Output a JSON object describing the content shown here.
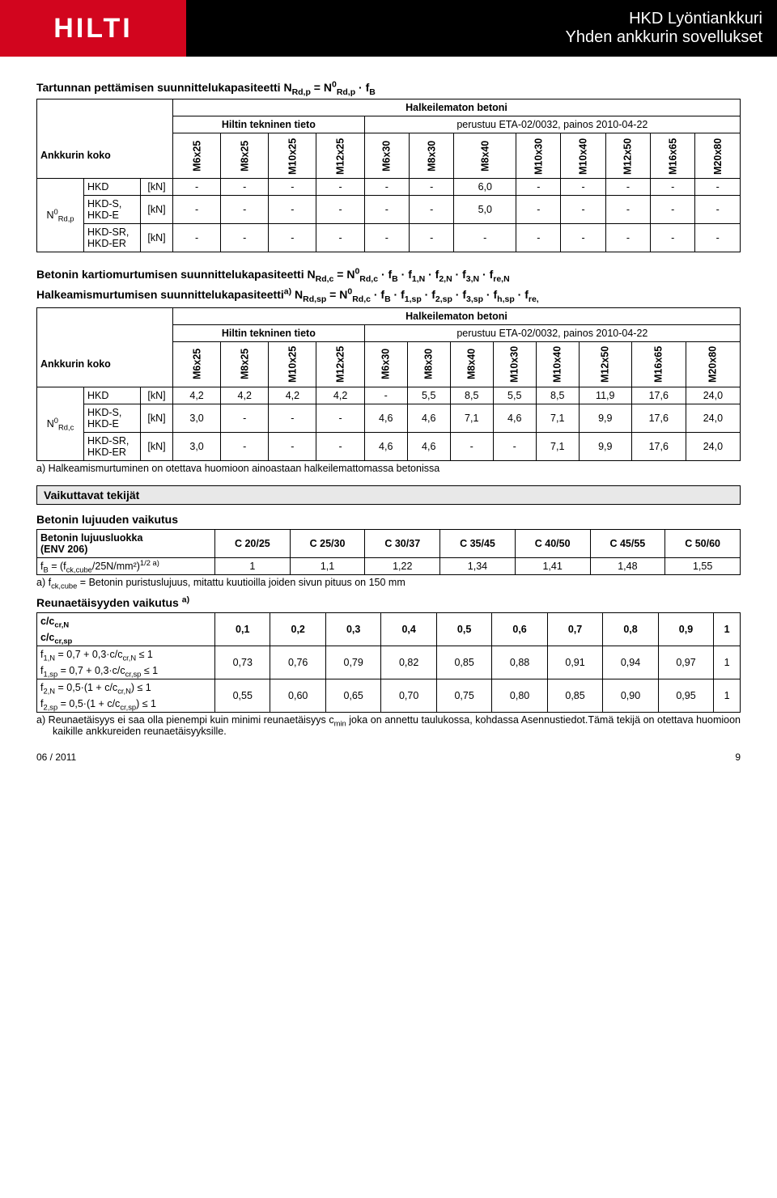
{
  "header": {
    "logo": "HILTI",
    "title_line1": "HKD   Lyöntiankkuri",
    "title_line2": "Yhden ankkurin sovellukset"
  },
  "table1": {
    "formula_html": "Tartunnan pettämisen suunnittelukapasiteetti N<sub>Rd,p</sub> = N<sup>0</sup><sub>Rd,p</sub> · f<sub>B</sub>",
    "uncracked": "Halkeilematon betoni",
    "tech_info": "Hiltin tekninen tieto",
    "basis": "perustuu ETA-02/0032, painos 2010-04-22",
    "anchor_size": "Ankkurin koko",
    "sizes": [
      "M6x25",
      "M8x25",
      "M10x25",
      "M12x25",
      "M6x30",
      "M8x30",
      "M8x40",
      "M10x30",
      "M10x40",
      "M12x50",
      "M16x65",
      "M20x80"
    ],
    "rowlabel_html": "N<sup>0</sup><sub>Rd,p</sub>",
    "rows": [
      {
        "name": "HKD",
        "unit": "[kN]",
        "vals": [
          "-",
          "-",
          "-",
          "-",
          "-",
          "-",
          "6,0",
          "-",
          "-",
          "-",
          "-",
          "-"
        ]
      },
      {
        "name": "HKD-S,\nHKD-E",
        "unit": "[kN]",
        "vals": [
          "-",
          "-",
          "-",
          "-",
          "-",
          "-",
          "5,0",
          "-",
          "-",
          "-",
          "-",
          "-"
        ]
      },
      {
        "name": "HKD-SR,\nHKD-ER",
        "unit": "[kN]",
        "vals": [
          "-",
          "-",
          "-",
          "-",
          "-",
          "-",
          "-",
          "-",
          "-",
          "-",
          "-",
          "-"
        ]
      }
    ]
  },
  "table2": {
    "formula1_html": "Betonin kartiomurtumisen suunnittelukapasiteetti N<sub>Rd,c</sub> = N<sup>0</sup><sub>Rd,c</sub> · f<sub>B</sub> · f<sub>1,N</sub> · f<sub>2,N</sub> · f<sub>3,N</sub> · f<sub>re,N</sub>",
    "formula2_html": "Halkeamismurtumisen suunnittelukapasiteetti<sup>a)</sup> N<sub>Rd,sp</sub> = N<sup>0</sup><sub>Rd,c</sub> · f<sub>B</sub> · f<sub>1,sp</sub> · f<sub>2,sp</sub> · f<sub>3,sp</sub> · f<sub>h,sp</sub> · f<sub>re,</sub>",
    "uncracked": "Halkeilematon betoni",
    "tech_info": "Hiltin tekninen tieto",
    "basis": "perustuu ETA-02/0032, painos 2010-04-22",
    "anchor_size": "Ankkurin koko",
    "sizes": [
      "M6x25",
      "M8x25",
      "M10x25",
      "M12x25",
      "M6x30",
      "M8x30",
      "M8x40",
      "M10x30",
      "M10x40",
      "M12x50",
      "M16x65",
      "M20x80"
    ],
    "rowlabel_html": "N<sup>0</sup><sub>Rd,c</sub>",
    "rows": [
      {
        "name": "HKD",
        "unit": "[kN]",
        "vals": [
          "4,2",
          "4,2",
          "4,2",
          "4,2",
          "-",
          "5,5",
          "8,5",
          "5,5",
          "8,5",
          "11,9",
          "17,6",
          "24,0"
        ]
      },
      {
        "name": "HKD-S,\nHKD-E",
        "unit": "[kN]",
        "vals": [
          "3,0",
          "-",
          "-",
          "-",
          "4,6",
          "4,6",
          "7,1",
          "4,6",
          "7,1",
          "9,9",
          "17,6",
          "24,0"
        ]
      },
      {
        "name": "HKD-SR,\nHKD-ER",
        "unit": "[kN]",
        "vals": [
          "3,0",
          "-",
          "-",
          "-",
          "4,6",
          "4,6",
          "-",
          "-",
          "7,1",
          "9,9",
          "17,6",
          "24,0"
        ]
      }
    ],
    "note_a": "a) Halkeamismurtuminen on otettava huomioon ainoastaan halkeilemattomassa betonissa"
  },
  "influencing": {
    "box_title": "Vaikuttavat tekijät",
    "concrete_strength_title": "Betonin lujuuden vaikutus",
    "concrete_table": {
      "row1_label_html": "Betonin lujuusluokka<br>(ENV 206)",
      "classes": [
        "C 20/25",
        "C 25/30",
        "C 30/37",
        "C 35/45",
        "C 40/50",
        "C 45/55",
        "C 50/60"
      ],
      "row2_label_html": "f<sub>B</sub>  =   (f<sub>ck,cube</sub>/25N/mm²)<sup>1/2  a)</sup>",
      "row2_vals": [
        "1",
        "1,1",
        "1,22",
        "1,34",
        "1,41",
        "1,48",
        "1,55"
      ],
      "note": "a)   f<sub>ck,cube</sub> = Betonin puristuslujuus, mitattu kuutioilla joiden sivun pituus on 150 mm"
    },
    "edge_title_html": "Reunaetäisyyden vaikutus <sup>a)</sup>",
    "edge_table": {
      "h1_html": "c/c<sub>cr,N</sub>",
      "h2_html": "c/c<sub>cr,sp</sub>",
      "cols": [
        "0,1",
        "0,2",
        "0,3",
        "0,4",
        "0,5",
        "0,6",
        "0,7",
        "0,8",
        "0,9",
        "1"
      ],
      "r2a_html": "f<sub>1,N</sub>  =   0,7 + 0,3·c/c<sub>cr,N</sub> ≤ 1",
      "r2b_html": "f<sub>1,sp</sub>  =  0,7 + 0,3·c/c<sub>cr,sp</sub> ≤ 1",
      "r2_vals": [
        "0,73",
        "0,76",
        "0,79",
        "0,82",
        "0,85",
        "0,88",
        "0,91",
        "0,94",
        "0,97",
        "1"
      ],
      "r3a_html": "f<sub>2,N</sub>  =   0,5·(1 + c/c<sub>cr,N</sub>) ≤ 1",
      "r3b_html": "f<sub>2,sp</sub>  =  0,5·(1 + c/c<sub>cr,sp</sub>) ≤ 1",
      "r3_vals": [
        "0,55",
        "0,60",
        "0,65",
        "0,70",
        "0,75",
        "0,80",
        "0,85",
        "0,90",
        "0,95",
        "1"
      ],
      "note": "a)   Reunaetäisyys ei saa olla pienempi kuin minimi reunaetäisyys c<sub>min</sub> joka on annettu taulukossa, kohdassa Asennustiedot.Tämä tekijä on otettava huomioon kaikille ankkureiden reunaetäisyyksille."
    }
  },
  "footer": {
    "date": "06 / 2011",
    "page": "9"
  }
}
